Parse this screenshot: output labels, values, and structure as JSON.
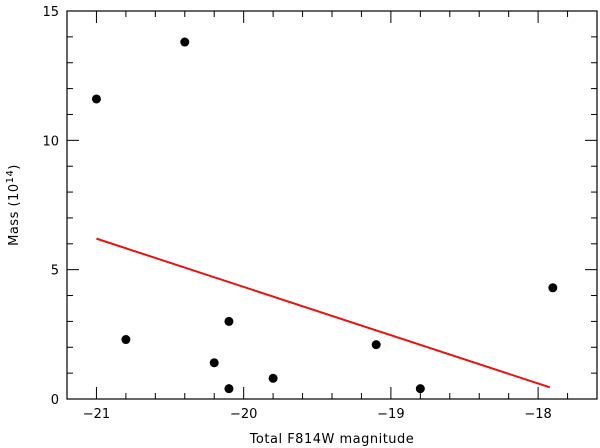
{
  "chart_data": {
    "type": "scatter",
    "title": "",
    "xlabel": "Total F814W  magnitude",
    "ylabel_main": "Mass (10",
    "ylabel_sup": "14",
    "ylabel_close": ")",
    "xlim": [
      -21.2,
      -17.6
    ],
    "ylim": [
      0,
      15
    ],
    "xticks": [
      -21,
      -20,
      -19,
      -18
    ],
    "xtick_labels": [
      "−21",
      "−20",
      "−19",
      "−18"
    ],
    "yticks": [
      0,
      5,
      10,
      15
    ],
    "ytick_labels": [
      "0",
      "5",
      "10",
      "15"
    ],
    "xminor_step": 0.2,
    "yminor_step": 1,
    "grid": false,
    "legend": "none",
    "points": [
      {
        "x": -21.0,
        "y": 11.6
      },
      {
        "x": -20.4,
        "y": 13.8
      },
      {
        "x": -20.8,
        "y": 2.3
      },
      {
        "x": -20.2,
        "y": 1.4
      },
      {
        "x": -20.1,
        "y": 3.0
      },
      {
        "x": -20.1,
        "y": 0.4
      },
      {
        "x": -19.8,
        "y": 0.8
      },
      {
        "x": -19.1,
        "y": 2.1
      },
      {
        "x": -18.8,
        "y": 0.4
      },
      {
        "x": -17.9,
        "y": 4.3
      }
    ],
    "fit_line": {
      "x": [
        -21.0,
        -17.92
      ],
      "y": [
        6.2,
        0.45
      ],
      "color": "#e8130c"
    },
    "point_color": "#000000"
  }
}
